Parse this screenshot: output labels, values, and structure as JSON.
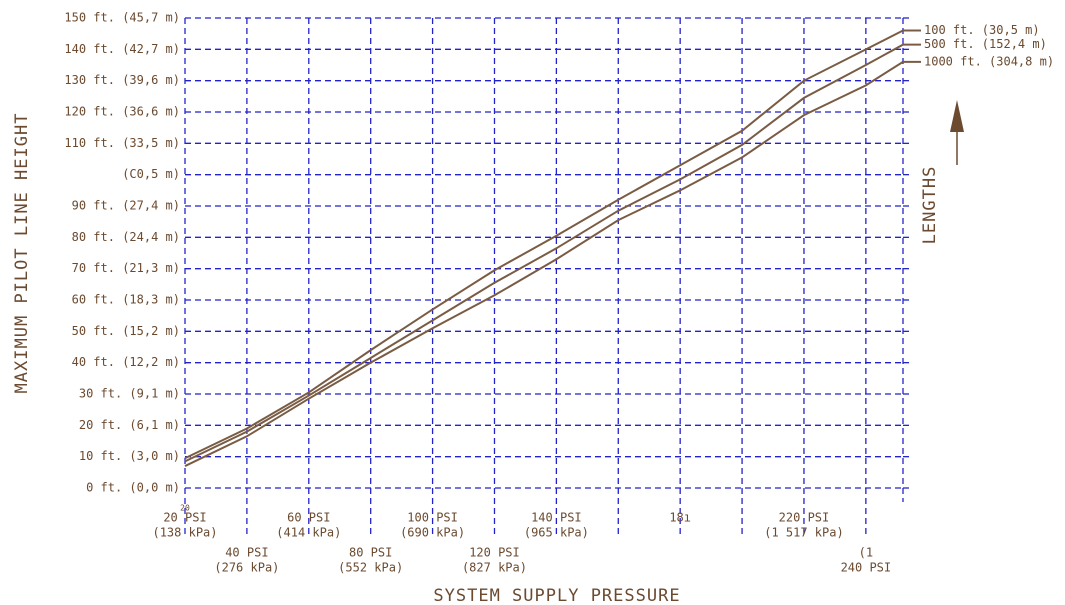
{
  "chart_data": {
    "type": "line",
    "y_axis_label": "MAXIMUM PILOT LINE HEIGHT",
    "x_axis_label": "SYSTEM SUPPLY PRESSURE",
    "legend_title": "LENGTHS",
    "annotations": [
      "20"
    ],
    "x": [
      20,
      40,
      60,
      80,
      100,
      120,
      140,
      160,
      180,
      200,
      220,
      240,
      252
    ],
    "xlim": [
      20,
      252
    ],
    "xticks": [
      {
        "value": 20,
        "label": [
          "20 PSI",
          "(138 kPa)"
        ]
      },
      {
        "value": 40,
        "label": [
          "40 PSI",
          "(276 kPa)"
        ]
      },
      {
        "value": 60,
        "label": [
          "60 PSI",
          "(414 kPa)"
        ]
      },
      {
        "value": 80,
        "label": [
          "80 PSI",
          "(552 kPa)"
        ]
      },
      {
        "value": 100,
        "label": [
          "100 PSI",
          "(690 kPa)"
        ]
      },
      {
        "value": 120,
        "label": [
          "120 PSI",
          "(827 kPa)"
        ]
      },
      {
        "value": 140,
        "label": [
          "140 PSI",
          "(965 kPa)"
        ]
      },
      {
        "value": 160,
        "label": null
      },
      {
        "value": 180,
        "label": [
          "18ı"
        ]
      },
      {
        "value": 200,
        "label": null
      },
      {
        "value": 220,
        "label": [
          "220 PSI",
          "(1 517 kPa)"
        ]
      },
      {
        "value": 240,
        "label": [
          "(1",
          "240 PSI"
        ]
      }
    ],
    "ylim": [
      0,
      150
    ],
    "yticks": [
      {
        "value": 0,
        "label": "0 ft. (0,0 m)"
      },
      {
        "value": 10,
        "label": "10 ft. (3,0 m)"
      },
      {
        "value": 20,
        "label": "20 ft. (6,1 m)"
      },
      {
        "value": 30,
        "label": "30 ft. (9,1 m)"
      },
      {
        "value": 40,
        "label": "40 ft. (12,2 m)"
      },
      {
        "value": 50,
        "label": "50 ft. (15,2 m)"
      },
      {
        "value": 60,
        "label": "60 ft. (18,3 m)"
      },
      {
        "value": 70,
        "label": "70 ft. (21,3 m)"
      },
      {
        "value": 80,
        "label": "80 ft. (24,4 m)"
      },
      {
        "value": 90,
        "label": "90 ft. (27,4 m)"
      },
      {
        "value": 100,
        "label": "(C0,5 m)"
      },
      {
        "value": 110,
        "label": "110 ft. (33,5 m)"
      },
      {
        "value": 120,
        "label": "120 ft. (36,6 m)"
      },
      {
        "value": 130,
        "label": "130 ft. (39,6 m)"
      },
      {
        "value": 140,
        "label": "140 ft. (42,7 m)"
      },
      {
        "value": 150,
        "label": "150 ft. (45,7 m)"
      }
    ],
    "grid": true,
    "series": [
      {
        "name": "100 ft. (30,5 m)",
        "color": "#7a5c44",
        "values": [
          9.5,
          19,
          30.5,
          44,
          57,
          69.5,
          80.5,
          92,
          103,
          114,
          130,
          140,
          146
        ]
      },
      {
        "name": "500 ft. (152,4 m)",
        "color": "#7a5c44",
        "values": [
          8.5,
          18,
          29.5,
          41.5,
          53.5,
          65.5,
          76.5,
          88.5,
          98.5,
          109.5,
          124.5,
          135,
          141.5
        ]
      },
      {
        "name": "1000 ft. (304,8 m)",
        "color": "#7a5c44",
        "values": [
          7,
          16.5,
          28.5,
          40,
          51,
          61.5,
          73,
          85.5,
          95,
          105.5,
          119,
          128.5,
          136
        ]
      }
    ]
  }
}
